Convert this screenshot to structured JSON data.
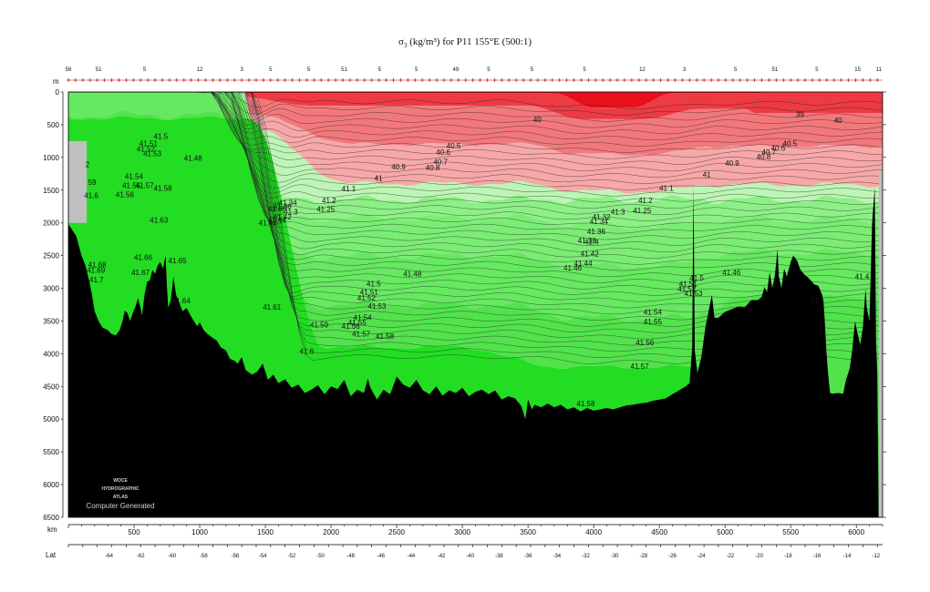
{
  "chart_data": {
    "type": "area",
    "title_parts": {
      "pre": "σ",
      "sub": "3",
      "post": " (kg/m³) for P11 155°E (500:1)"
    },
    "depth_unit": "m",
    "distance_unit": "km",
    "lat_label": "Lat",
    "depth_ticks": [
      0,
      500,
      1000,
      1500,
      2000,
      2500,
      3000,
      3500,
      4000,
      4500,
      5000,
      5500,
      6000,
      6500
    ],
    "depth_range": [
      0,
      6500
    ],
    "km_ticks": [
      500,
      1000,
      1500,
      2000,
      2500,
      3000,
      3500,
      4000,
      4500,
      5000,
      5500,
      6000
    ],
    "km_range": [
      0,
      6200
    ],
    "lat_ticks": [
      {
        "label": "-64",
        "km": 310
      },
      {
        "label": "-62",
        "km": 550
      },
      {
        "label": "-60",
        "km": 790
      },
      {
        "label": "-58",
        "km": 1030
      },
      {
        "label": "-56",
        "km": 1270
      },
      {
        "label": "-54",
        "km": 1480
      },
      {
        "label": "-52",
        "km": 1700
      },
      {
        "label": "-50",
        "km": 1920
      },
      {
        "label": "-48",
        "km": 2150
      },
      {
        "label": "-46",
        "km": 2380
      },
      {
        "label": "-44",
        "km": 2610
      },
      {
        "label": "-42",
        "km": 2840
      },
      {
        "label": "-40",
        "km": 3060
      },
      {
        "label": "-38",
        "km": 3280
      },
      {
        "label": "-36",
        "km": 3500
      },
      {
        "label": "-34",
        "km": 3720
      },
      {
        "label": "-32",
        "km": 3940
      },
      {
        "label": "-30",
        "km": 4160
      },
      {
        "label": "-28",
        "km": 4380
      },
      {
        "label": "-26",
        "km": 4600
      },
      {
        "label": "-24",
        "km": 4820
      },
      {
        "label": "-22",
        "km": 5040
      },
      {
        "label": "-20",
        "km": 5260
      },
      {
        "label": "-18",
        "km": 5480
      },
      {
        "label": "-16",
        "km": 5700
      },
      {
        "label": "-14",
        "km": 5930
      },
      {
        "label": "-12",
        "km": 6150
      }
    ],
    "station_labels": [
      {
        "label": "58",
        "km": 0
      },
      {
        "label": "51",
        "km": 230
      },
      {
        "label": "5",
        "km": 580
      },
      {
        "label": "12",
        "km": 1000
      },
      {
        "label": "3",
        "km": 1320
      },
      {
        "label": "5",
        "km": 1540
      },
      {
        "label": "5",
        "km": 1830
      },
      {
        "label": "51",
        "km": 2100
      },
      {
        "label": "5",
        "km": 2370
      },
      {
        "label": "5",
        "km": 2650
      },
      {
        "label": "49",
        "km": 2950
      },
      {
        "label": "5",
        "km": 3200
      },
      {
        "label": "5",
        "km": 3530
      },
      {
        "label": "5",
        "km": 3930
      },
      {
        "label": "12",
        "km": 4370
      },
      {
        "label": "3",
        "km": 4690
      },
      {
        "label": "5",
        "km": 5080
      },
      {
        "label": "51",
        "km": 5380
      },
      {
        "label": "5",
        "km": 5700
      },
      {
        "label": "15",
        "km": 6010
      },
      {
        "label": "11",
        "km": 6170
      }
    ],
    "bands": [
      {
        "range": "<39",
        "color": "#e8101a"
      },
      {
        "range": "39-40",
        "color": "#ee3a42"
      },
      {
        "range": "40-40.5",
        "color": "#f2787c"
      },
      {
        "range": "40.5-41",
        "color": "#f7a8a8"
      },
      {
        "range": "41-41.2",
        "color": "#bdf5b6"
      },
      {
        "range": "41.2-41.4",
        "color": "#8df086"
      },
      {
        "range": "41.4-41.5",
        "color": "#7bec74"
      },
      {
        "range": "41.5-41.55",
        "color": "#66e860"
      },
      {
        "range": "41.55-41.6",
        "color": "#52e24c"
      },
      {
        "range": ">41.6",
        "color": "#22dd22"
      }
    ],
    "contour_labels": [
      {
        "text": "39",
        "km": 5540,
        "depth": 380
      },
      {
        "text": "40",
        "km": 3540,
        "depth": 460
      },
      {
        "text": "40",
        "km": 5830,
        "depth": 470
      },
      {
        "text": "40.5",
        "km": 2880,
        "depth": 860
      },
      {
        "text": "40.6",
        "km": 2800,
        "depth": 960
      },
      {
        "text": "40.7",
        "km": 2780,
        "depth": 1110
      },
      {
        "text": "40.8",
        "km": 2720,
        "depth": 1200
      },
      {
        "text": "40.9",
        "km": 2460,
        "depth": 1180
      },
      {
        "text": "41",
        "km": 2330,
        "depth": 1360
      },
      {
        "text": "40.5",
        "km": 5440,
        "depth": 830
      },
      {
        "text": "40.6",
        "km": 5350,
        "depth": 900
      },
      {
        "text": "40.7",
        "km": 5280,
        "depth": 960
      },
      {
        "text": "40.8",
        "km": 5240,
        "depth": 1030
      },
      {
        "text": "40.9",
        "km": 5000,
        "depth": 1130
      },
      {
        "text": "41",
        "km": 4830,
        "depth": 1300
      },
      {
        "text": "41.1",
        "km": 2080,
        "depth": 1520
      },
      {
        "text": "41.1",
        "km": 4500,
        "depth": 1510
      },
      {
        "text": "41.2",
        "km": 1930,
        "depth": 1700
      },
      {
        "text": "41.2",
        "km": 4340,
        "depth": 1700
      },
      {
        "text": "41.25",
        "km": 1890,
        "depth": 1830
      },
      {
        "text": "41.25",
        "km": 4300,
        "depth": 1850
      },
      {
        "text": "41.3",
        "km": 1640,
        "depth": 1870
      },
      {
        "text": "41.3",
        "km": 4130,
        "depth": 1870
      },
      {
        "text": "41.32",
        "km": 3990,
        "depth": 1950
      },
      {
        "text": "41.34",
        "km": 3970,
        "depth": 2020
      },
      {
        "text": "41.36",
        "km": 3950,
        "depth": 2170
      },
      {
        "text": "41.38",
        "km": 3880,
        "depth": 2310
      },
      {
        "text": "41.4",
        "km": 3930,
        "depth": 2330
      },
      {
        "text": "41.42",
        "km": 3900,
        "depth": 2510
      },
      {
        "text": "41.44",
        "km": 3850,
        "depth": 2660
      },
      {
        "text": "41.46",
        "km": 3770,
        "depth": 2730
      },
      {
        "text": "41.46",
        "km": 4980,
        "depth": 2800
      },
      {
        "text": "41.48",
        "km": 2550,
        "depth": 2820
      },
      {
        "text": "41.5",
        "km": 2270,
        "depth": 2970
      },
      {
        "text": "41.51",
        "km": 2220,
        "depth": 3100
      },
      {
        "text": "41.52",
        "km": 2200,
        "depth": 3190
      },
      {
        "text": "41.53",
        "km": 2280,
        "depth": 3310
      },
      {
        "text": "41.54",
        "km": 2170,
        "depth": 3490
      },
      {
        "text": "41.55",
        "km": 2130,
        "depth": 3560
      },
      {
        "text": "41.56",
        "km": 2080,
        "depth": 3620
      },
      {
        "text": "41.57",
        "km": 2160,
        "depth": 3740
      },
      {
        "text": "41.58",
        "km": 2340,
        "depth": 3770
      },
      {
        "text": "41.59",
        "km": 1840,
        "depth": 3600
      },
      {
        "text": "41.6",
        "km": 1760,
        "depth": 4000
      },
      {
        "text": "41.61",
        "km": 1480,
        "depth": 3330
      },
      {
        "text": "41.5",
        "km": 4730,
        "depth": 2880
      },
      {
        "text": "41.51",
        "km": 4650,
        "depth": 2970
      },
      {
        "text": "41.52",
        "km": 4640,
        "depth": 3050
      },
      {
        "text": "41.53",
        "km": 4690,
        "depth": 3120
      },
      {
        "text": "41.54",
        "km": 4380,
        "depth": 3400
      },
      {
        "text": "41.55",
        "km": 4380,
        "depth": 3550
      },
      {
        "text": "41.56",
        "km": 4320,
        "depth": 3870
      },
      {
        "text": "41.57",
        "km": 4280,
        "depth": 4230
      },
      {
        "text": "41.58",
        "km": 3870,
        "depth": 4800
      },
      {
        "text": "41.5",
        "km": 650,
        "depth": 720
      },
      {
        "text": "41.51",
        "km": 540,
        "depth": 830
      },
      {
        "text": "41.52",
        "km": 520,
        "depth": 910
      },
      {
        "text": "41.53",
        "km": 570,
        "depth": 980
      },
      {
        "text": "41.48",
        "km": 880,
        "depth": 1050
      },
      {
        "text": "41.54",
        "km": 430,
        "depth": 1330
      },
      {
        "text": "41.55",
        "km": 410,
        "depth": 1470
      },
      {
        "text": "41.57",
        "km": 510,
        "depth": 1470
      },
      {
        "text": "41.58",
        "km": 650,
        "depth": 1510
      },
      {
        "text": "41.56",
        "km": 360,
        "depth": 1610
      },
      {
        "text": "41.6",
        "km": 120,
        "depth": 1620
      },
      {
        "text": "59",
        "km": 150,
        "depth": 1420
      },
      {
        "text": "2",
        "km": 130,
        "depth": 1150
      },
      {
        "text": "41.63",
        "km": 620,
        "depth": 2000
      },
      {
        "text": "41.66",
        "km": 500,
        "depth": 2570
      },
      {
        "text": "41.65",
        "km": 760,
        "depth": 2620
      },
      {
        "text": "41.67",
        "km": 480,
        "depth": 2800
      },
      {
        "text": "41.68",
        "km": 150,
        "depth": 2680
      },
      {
        "text": "41.69",
        "km": 140,
        "depth": 2760
      },
      {
        "text": "41.7",
        "km": 160,
        "depth": 2910
      },
      {
        "text": "41.64",
        "km": 790,
        "depth": 3230
      },
      {
        "text": "41.4",
        "km": 5990,
        "depth": 2860
      },
      {
        "text": "41",
        "km": 5650,
        "depth": 3230
      },
      {
        "text": "41.46",
        "km": 1450,
        "depth": 2040
      },
      {
        "text": "41.44",
        "km": 1520,
        "depth": 2000
      },
      {
        "text": "41.42",
        "km": 1560,
        "depth": 1950
      },
      {
        "text": "41.38",
        "km": 1520,
        "depth": 1820
      },
      {
        "text": "41.36",
        "km": 1560,
        "depth": 1790
      },
      {
        "text": "41.34",
        "km": 1600,
        "depth": 1730
      }
    ],
    "seafloor": [
      [
        0,
        2020
      ],
      [
        60,
        2200
      ],
      [
        100,
        2500
      ],
      [
        130,
        2650
      ],
      [
        160,
        2900
      ],
      [
        180,
        3100
      ],
      [
        200,
        3350
      ],
      [
        230,
        3500
      ],
      [
        260,
        3600
      ],
      [
        300,
        3640
      ],
      [
        330,
        3700
      ],
      [
        360,
        3720
      ],
      [
        390,
        3640
      ],
      [
        410,
        3520
      ],
      [
        430,
        3340
      ],
      [
        450,
        3380
      ],
      [
        470,
        3500
      ],
      [
        490,
        3380
      ],
      [
        510,
        3280
      ],
      [
        530,
        3150
      ],
      [
        550,
        3300
      ],
      [
        560,
        3420
      ],
      [
        580,
        3100
      ],
      [
        600,
        2900
      ],
      [
        620,
        2880
      ],
      [
        640,
        2720
      ],
      [
        660,
        2780
      ],
      [
        680,
        2650
      ],
      [
        700,
        2600
      ],
      [
        720,
        2700
      ],
      [
        740,
        2500
      ],
      [
        750,
        2950
      ],
      [
        760,
        3300
      ],
      [
        780,
        3180
      ],
      [
        790,
        3000
      ],
      [
        800,
        2820
      ],
      [
        820,
        3100
      ],
      [
        840,
        3200
      ],
      [
        870,
        3350
      ],
      [
        900,
        3300
      ],
      [
        940,
        3450
      ],
      [
        980,
        3580
      ],
      [
        1000,
        3520
      ],
      [
        1030,
        3640
      ],
      [
        1060,
        3700
      ],
      [
        1100,
        3760
      ],
      [
        1130,
        3800
      ],
      [
        1160,
        3900
      ],
      [
        1200,
        3950
      ],
      [
        1230,
        4080
      ],
      [
        1260,
        4100
      ],
      [
        1290,
        4150
      ],
      [
        1320,
        4050
      ],
      [
        1350,
        4250
      ],
      [
        1400,
        4320
      ],
      [
        1440,
        4270
      ],
      [
        1480,
        4150
      ],
      [
        1520,
        4400
      ],
      [
        1560,
        4320
      ],
      [
        1600,
        4450
      ],
      [
        1650,
        4390
      ],
      [
        1700,
        4520
      ],
      [
        1750,
        4470
      ],
      [
        1800,
        4600
      ],
      [
        1850,
        4550
      ],
      [
        1900,
        4480
      ],
      [
        1950,
        4620
      ],
      [
        2000,
        4500
      ],
      [
        2050,
        4540
      ],
      [
        2100,
        4400
      ],
      [
        2150,
        4650
      ],
      [
        2200,
        4550
      ],
      [
        2250,
        4600
      ],
      [
        2280,
        4380
      ],
      [
        2300,
        4520
      ],
      [
        2350,
        4700
      ],
      [
        2400,
        4550
      ],
      [
        2450,
        4620
      ],
      [
        2500,
        4350
      ],
      [
        2550,
        4470
      ],
      [
        2600,
        4520
      ],
      [
        2650,
        4400
      ],
      [
        2700,
        4560
      ],
      [
        2750,
        4620
      ],
      [
        2800,
        4500
      ],
      [
        2850,
        4640
      ],
      [
        2900,
        4560
      ],
      [
        2950,
        4600
      ],
      [
        3000,
        4520
      ],
      [
        3050,
        4650
      ],
      [
        3100,
        4580
      ],
      [
        3150,
        4550
      ],
      [
        3200,
        4620
      ],
      [
        3250,
        4560
      ],
      [
        3300,
        4700
      ],
      [
        3350,
        4650
      ],
      [
        3400,
        4680
      ],
      [
        3450,
        4800
      ],
      [
        3480,
        5000
      ],
      [
        3500,
        4700
      ],
      [
        3530,
        4850
      ],
      [
        3550,
        4780
      ],
      [
        3600,
        4820
      ],
      [
        3650,
        4760
      ],
      [
        3700,
        4820
      ],
      [
        3750,
        4780
      ],
      [
        3800,
        4850
      ],
      [
        3850,
        4820
      ],
      [
        3900,
        4880
      ],
      [
        3950,
        4830
      ],
      [
        4000,
        4870
      ],
      [
        4050,
        4850
      ],
      [
        4100,
        4830
      ],
      [
        4150,
        4850
      ],
      [
        4200,
        4820
      ],
      [
        4250,
        4790
      ],
      [
        4300,
        4780
      ],
      [
        4350,
        4760
      ],
      [
        4400,
        4750
      ],
      [
        4450,
        4720
      ],
      [
        4500,
        4700
      ],
      [
        4550,
        4680
      ],
      [
        4600,
        4620
      ],
      [
        4650,
        4560
      ],
      [
        4700,
        4500
      ],
      [
        4730,
        4450
      ],
      [
        4750,
        3900
      ],
      [
        4760,
        1400
      ],
      [
        4770,
        3950
      ],
      [
        4790,
        4300
      ],
      [
        4820,
        4050
      ],
      [
        4850,
        3600
      ],
      [
        4880,
        3300
      ],
      [
        4900,
        3100
      ],
      [
        4920,
        3450
      ],
      [
        4950,
        3450
      ],
      [
        5000,
        3360
      ],
      [
        5050,
        3320
      ],
      [
        5100,
        3280
      ],
      [
        5150,
        3290
      ],
      [
        5200,
        3180
      ],
      [
        5250,
        3180
      ],
      [
        5280,
        3130
      ],
      [
        5300,
        2980
      ],
      [
        5320,
        3060
      ],
      [
        5340,
        2750
      ],
      [
        5360,
        3000
      ],
      [
        5380,
        2800
      ],
      [
        5400,
        2400
      ],
      [
        5410,
        2820
      ],
      [
        5430,
        3000
      ],
      [
        5450,
        2700
      ],
      [
        5470,
        2820
      ],
      [
        5500,
        2600
      ],
      [
        5520,
        2500
      ],
      [
        5550,
        2580
      ],
      [
        5570,
        2700
      ],
      [
        5600,
        2780
      ],
      [
        5640,
        2850
      ],
      [
        5680,
        2940
      ],
      [
        5710,
        2960
      ],
      [
        5730,
        3050
      ],
      [
        5740,
        3100
      ],
      [
        5750,
        3200
      ],
      [
        5760,
        3500
      ],
      [
        5770,
        3900
      ],
      [
        5780,
        4180
      ],
      [
        5790,
        4400
      ],
      [
        5800,
        4600
      ],
      [
        5820,
        4610
      ],
      [
        5860,
        4600
      ],
      [
        5900,
        4610
      ],
      [
        5920,
        4410
      ],
      [
        5950,
        4220
      ],
      [
        5970,
        3920
      ],
      [
        5990,
        3500
      ],
      [
        6010,
        3700
      ],
      [
        6030,
        3860
      ],
      [
        6050,
        3600
      ],
      [
        6070,
        3000
      ],
      [
        6080,
        3300
      ],
      [
        6100,
        3500
      ],
      [
        6120,
        2000
      ],
      [
        6140,
        1450
      ],
      [
        6150,
        3800
      ],
      [
        6160,
        4300
      ],
      [
        6170,
        6500
      ]
    ]
  }
}
